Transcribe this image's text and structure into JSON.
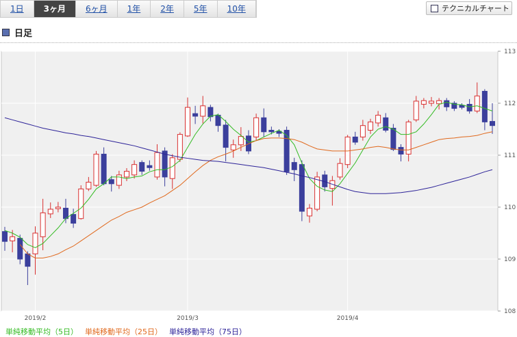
{
  "tabs": [
    "1日",
    "3ヶ月",
    "6ヶ月",
    "1年",
    "2年",
    "5年",
    "10年"
  ],
  "active_tab": 1,
  "button": "テクニカルチャート",
  "section_title": "日足",
  "chart_data": {
    "type": "candlestick",
    "categories": [
      null,
      null,
      null,
      null,
      "2019/2",
      null,
      null,
      null,
      null,
      null,
      null,
      null,
      null,
      null,
      null,
      null,
      null,
      null,
      null,
      null,
      null,
      null,
      null,
      null,
      "2019/3",
      null,
      null,
      null,
      null,
      null,
      null,
      null,
      null,
      null,
      null,
      null,
      null,
      null,
      null,
      null,
      null,
      null,
      null,
      null,
      null,
      "2019/4",
      null,
      null,
      null,
      null,
      null,
      null,
      null,
      null,
      null,
      null,
      null,
      null,
      null,
      null,
      null,
      null,
      null,
      null,
      null
    ],
    "open": [
      109.53,
      109.35,
      109.4,
      109.1,
      109.1,
      109.43,
      109.87,
      109.97,
      109.98,
      109.86,
      109.78,
      110.35,
      110.42,
      111.02,
      110.53,
      110.42,
      110.58,
      110.62,
      110.86,
      110.8,
      110.58,
      111.08,
      110.55,
      110.92,
      111.37,
      111.8,
      111.75,
      111.92,
      111.77,
      111.58,
      111.1,
      111.2,
      111.37,
      111.35,
      111.72,
      111.48,
      111.46,
      111.48,
      110.86,
      110.82,
      109.83,
      109.96,
      110.62,
      110.36,
      110.58,
      110.82,
      111.35,
      111.35,
      111.48,
      111.62,
      111.72,
      111.52,
      111.15,
      111.02,
      111.68,
      111.98,
      112.0,
      111.99,
      112.05,
      112.0,
      111.96,
      111.98,
      111.85,
      112.23,
      111.65
    ],
    "high": [
      109.62,
      109.56,
      109.47,
      109.15,
      109.63,
      110.16,
      110.09,
      110.1,
      110.16,
      109.97,
      110.42,
      110.58,
      111.08,
      111.15,
      110.6,
      110.7,
      110.75,
      110.9,
      110.9,
      110.9,
      111.21,
      111.15,
      111.02,
      111.44,
      112.11,
      111.95,
      112.14,
      111.97,
      111.8,
      111.68,
      111.3,
      111.54,
      111.48,
      111.8,
      111.9,
      111.55,
      111.5,
      111.55,
      110.95,
      110.9,
      110.06,
      110.68,
      110.7,
      110.6,
      110.94,
      111.39,
      111.45,
      111.68,
      111.7,
      111.85,
      111.81,
      111.6,
      111.21,
      111.68,
      112.14,
      112.1,
      112.12,
      112.1,
      112.1,
      112.04,
      112.0,
      112.08,
      112.4,
      112.27,
      112.0
    ],
    "low": [
      109.16,
      109.13,
      108.9,
      108.5,
      108.7,
      109.17,
      109.79,
      109.9,
      109.69,
      109.6,
      109.76,
      110.31,
      110.39,
      110.42,
      110.3,
      110.35,
      110.5,
      110.55,
      110.62,
      110.7,
      110.53,
      110.4,
      110.35,
      110.87,
      111.35,
      111.6,
      111.61,
      111.65,
      111.45,
      110.88,
      110.95,
      111.08,
      111.02,
      111.28,
      111.35,
      111.4,
      111.35,
      110.62,
      110.5,
      109.73,
      109.7,
      109.92,
      110.3,
      110.03,
      110.53,
      110.75,
      111.2,
      111.28,
      111.41,
      111.55,
      111.44,
      111.08,
      110.88,
      110.88,
      111.64,
      111.9,
      111.94,
      111.88,
      111.85,
      111.85,
      111.88,
      111.8,
      111.81,
      111.48,
      111.41
    ],
    "close": [
      109.34,
      109.43,
      109.0,
      108.86,
      109.5,
      109.89,
      109.96,
      110.0,
      109.78,
      109.69,
      110.35,
      110.48,
      111.02,
      110.45,
      110.45,
      110.62,
      110.69,
      110.82,
      110.69,
      110.76,
      111.05,
      110.58,
      110.95,
      111.4,
      111.92,
      111.75,
      111.95,
      111.74,
      111.57,
      111.15,
      111.2,
      111.36,
      111.08,
      111.72,
      111.45,
      111.45,
      111.42,
      110.68,
      110.72,
      109.92,
      109.98,
      110.58,
      110.39,
      110.51,
      110.84,
      111.35,
      111.25,
      111.57,
      111.64,
      111.77,
      111.48,
      111.11,
      111.02,
      111.64,
      112.04,
      112.05,
      112.04,
      112.05,
      111.93,
      111.9,
      111.92,
      111.85,
      112.14,
      111.64,
      111.57
    ],
    "up_color": "#d93030",
    "down_color": "#3b3f9c",
    "series": [
      {
        "name": "単純移動平均（5日）",
        "color": "#33bb22",
        "values": [
          109.55,
          109.5,
          109.42,
          109.28,
          109.22,
          109.3,
          109.45,
          109.6,
          109.78,
          109.88,
          109.98,
          110.15,
          110.35,
          110.45,
          110.58,
          110.58,
          110.55,
          110.58,
          110.6,
          110.68,
          110.72,
          110.72,
          110.78,
          110.9,
          111.15,
          111.4,
          111.6,
          111.75,
          111.78,
          111.65,
          111.5,
          111.38,
          111.25,
          111.28,
          111.35,
          111.42,
          111.48,
          111.38,
          111.2,
          110.85,
          110.55,
          110.4,
          110.33,
          110.3,
          110.45,
          110.65,
          110.85,
          111.1,
          111.35,
          111.5,
          111.55,
          111.5,
          111.4,
          111.4,
          111.45,
          111.6,
          111.78,
          111.98,
          112.02,
          111.98,
          111.97,
          111.93,
          111.95,
          111.9,
          111.85
        ]
      },
      {
        "name": "単純移動平均（25日）",
        "color": "#e0681c",
        "values": [
          null,
          null,
          109.28,
          109.1,
          109.02,
          109.02,
          109.05,
          109.1,
          109.18,
          109.25,
          109.35,
          109.45,
          109.55,
          109.65,
          109.75,
          109.82,
          109.9,
          109.95,
          110.0,
          110.08,
          110.15,
          110.22,
          110.32,
          110.42,
          110.55,
          110.68,
          110.8,
          110.9,
          110.97,
          111.02,
          111.08,
          111.15,
          111.22,
          111.28,
          111.32,
          111.33,
          111.33,
          111.32,
          111.3,
          111.25,
          111.18,
          111.12,
          111.1,
          111.08,
          111.08,
          111.08,
          111.1,
          111.12,
          111.15,
          111.17,
          111.15,
          111.12,
          111.1,
          111.1,
          111.15,
          111.2,
          111.25,
          111.3,
          111.32,
          111.33,
          111.35,
          111.36,
          111.38,
          111.42,
          111.45
        ]
      },
      {
        "name": "単純移動平均（75日）",
        "color": "#2c2298",
        "values": [
          111.72,
          111.68,
          111.64,
          111.6,
          111.56,
          111.52,
          111.49,
          111.46,
          111.43,
          111.41,
          111.38,
          111.36,
          111.33,
          111.3,
          111.27,
          111.24,
          111.21,
          111.18,
          111.14,
          111.1,
          111.06,
          111.02,
          110.99,
          110.96,
          110.94,
          110.92,
          110.9,
          110.89,
          110.88,
          110.86,
          110.84,
          110.82,
          110.8,
          110.78,
          110.76,
          110.73,
          110.7,
          110.67,
          110.64,
          110.6,
          110.57,
          110.53,
          110.49,
          110.44,
          110.39,
          110.34,
          110.3,
          110.28,
          110.26,
          110.26,
          110.26,
          110.27,
          110.28,
          110.3,
          110.32,
          110.35,
          110.38,
          110.42,
          110.46,
          110.5,
          110.54,
          110.58,
          110.63,
          110.68,
          110.72
        ]
      }
    ],
    "ylim": [
      108,
      113
    ],
    "yticks": [
      108,
      109,
      110,
      111,
      112,
      113
    ],
    "grid": true
  }
}
